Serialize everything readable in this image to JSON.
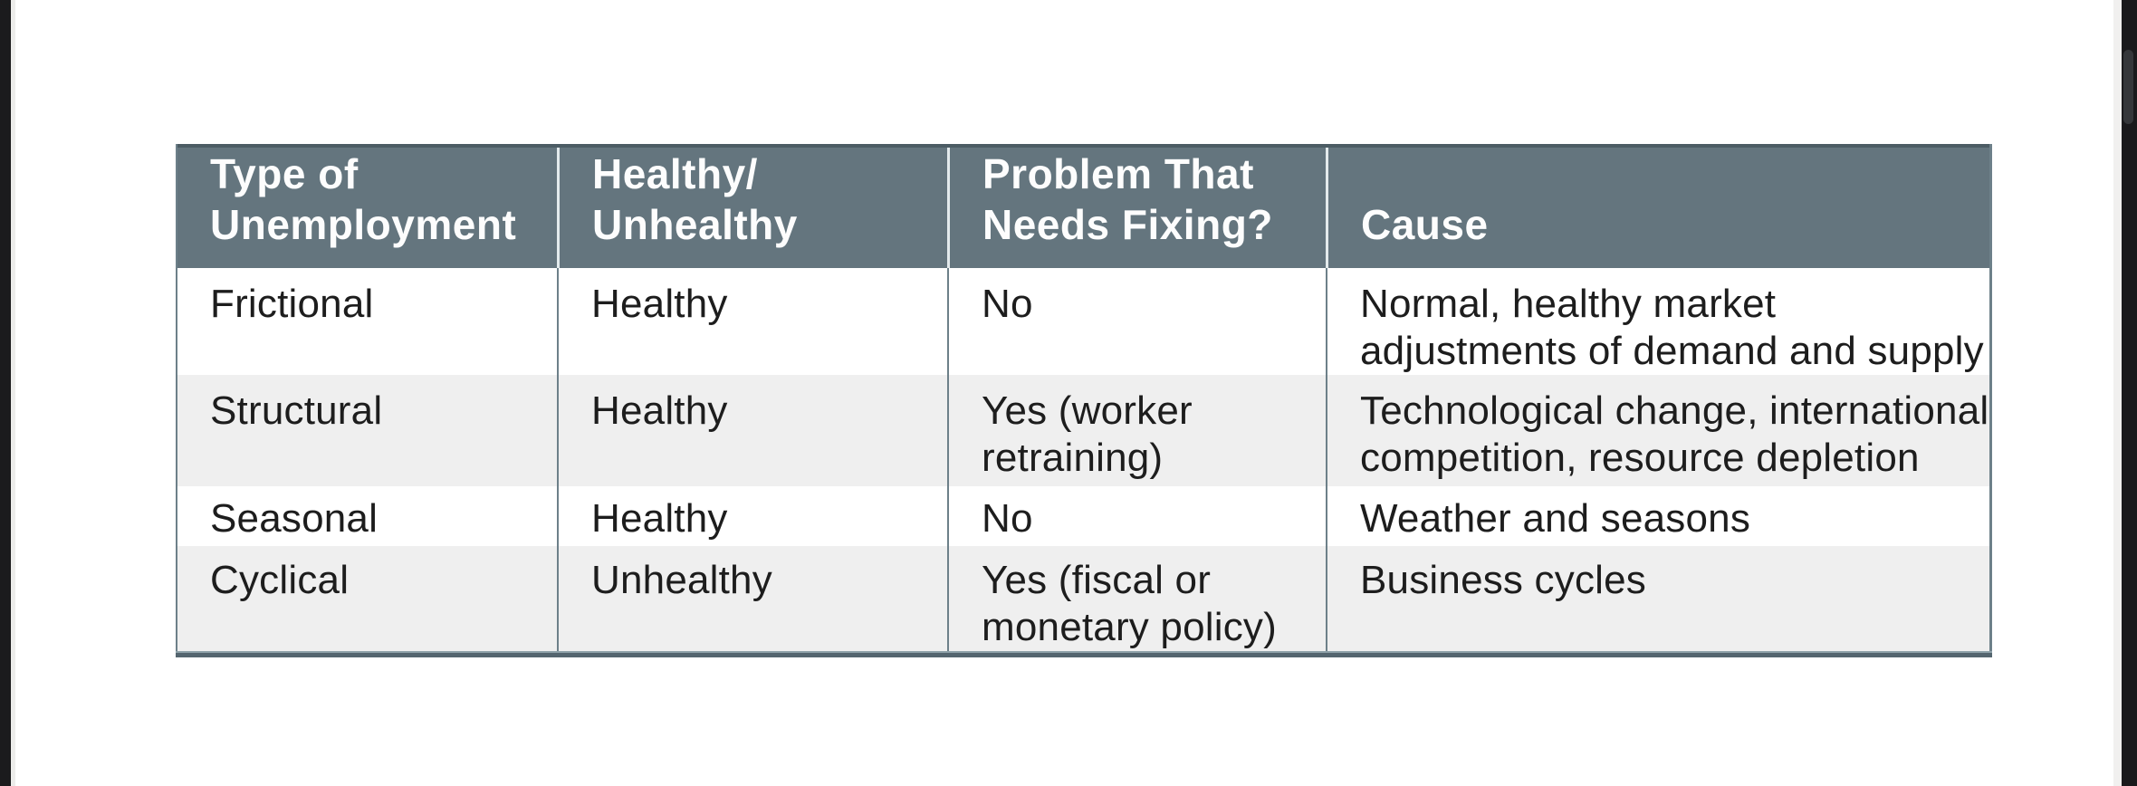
{
  "page": {
    "background": "#ffffff",
    "viewer_bar_color": "#1b1b1d",
    "page_edge_color": "#ececea"
  },
  "table": {
    "header_bg": "#64757e",
    "header_text_color": "#fdfdfd",
    "row_bg": "#ffffff",
    "row_alt_bg": "#efefef",
    "separator_color": "#6d8089",
    "bottom_border_color": "#54656f",
    "columns": [
      {
        "label": "Type of Unemployment",
        "lines": [
          "Type of",
          "Unemployment"
        ]
      },
      {
        "label": "Healthy/Unhealthy",
        "lines": [
          "Healthy/",
          "Unhealthy"
        ]
      },
      {
        "label": "Problem That Needs Fixing?",
        "lines": [
          "Problem That",
          "Needs Fixing?"
        ]
      },
      {
        "label": "Cause",
        "lines": [
          "Cause"
        ]
      }
    ],
    "rows": [
      {
        "type": {
          "lines": [
            "Frictional"
          ]
        },
        "healthy": {
          "lines": [
            "Healthy"
          ]
        },
        "problem": {
          "lines": [
            "No"
          ]
        },
        "cause": {
          "lines": [
            "Normal, healthy market",
            "adjustments of demand and supply"
          ]
        }
      },
      {
        "type": {
          "lines": [
            "Structural"
          ]
        },
        "healthy": {
          "lines": [
            "Healthy"
          ]
        },
        "problem": {
          "lines": [
            "Yes (worker",
            "retraining)"
          ]
        },
        "cause": {
          "lines": [
            "Technological change, international",
            "competition, resource depletion"
          ]
        }
      },
      {
        "type": {
          "lines": [
            "Seasonal"
          ]
        },
        "healthy": {
          "lines": [
            "Healthy"
          ]
        },
        "problem": {
          "lines": [
            "No"
          ]
        },
        "cause": {
          "lines": [
            "Weather and seasons"
          ]
        }
      },
      {
        "type": {
          "lines": [
            "Cyclical"
          ]
        },
        "healthy": {
          "lines": [
            "Unhealthy"
          ]
        },
        "problem": {
          "lines": [
            "Yes (fiscal or",
            "monetary policy)"
          ]
        },
        "cause": {
          "lines": [
            "Business cycles"
          ]
        }
      }
    ]
  }
}
